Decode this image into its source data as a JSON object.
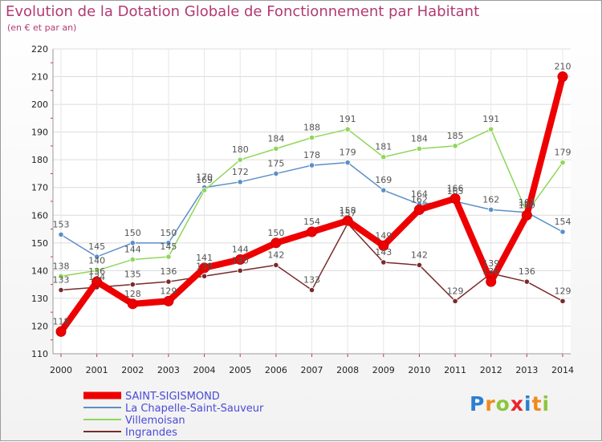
{
  "header": {
    "title": "Evolution de la Dotation Globale de Fonctionnement par Habitant",
    "subtitle": "(en € et par an)"
  },
  "logo": {
    "letters": [
      "P",
      "r",
      "o",
      "x",
      "i",
      "t",
      "i"
    ]
  },
  "chart_data": {
    "type": "line",
    "title": "Evolution de la Dotation Globale de Fonctionnement par Habitant",
    "subtitle": "(en € et par an)",
    "xlabel": "",
    "ylabel": "",
    "ylim": [
      110,
      220
    ],
    "yticks": [
      110,
      120,
      130,
      140,
      150,
      160,
      170,
      180,
      190,
      200,
      210,
      220
    ],
    "grid": true,
    "legend_position": "bottom-left",
    "x": [
      2000,
      2001,
      2002,
      2003,
      2004,
      2005,
      2006,
      2007,
      2008,
      2009,
      2010,
      2011,
      2012,
      2013,
      2014
    ],
    "series": [
      {
        "name": "La Chapelle-Saint-Sauveur",
        "color": "#5b8fc7",
        "values": [
          153,
          145,
          150,
          150,
          170,
          172,
          175,
          178,
          179,
          169,
          164,
          165,
          162,
          161,
          154
        ],
        "labels": [
          "153",
          "145",
          "150",
          "150",
          "170",
          "172",
          "175",
          "178",
          "179",
          "169",
          "164",
          "165",
          "162",
          "161",
          "154"
        ]
      },
      {
        "name": "Villemoisan",
        "color": "#8fd65a",
        "values": [
          138,
          140,
          144,
          145,
          169,
          180,
          184,
          188,
          191,
          181,
          184,
          185,
          191,
          161,
          179
        ],
        "labels": [
          "138",
          "140",
          "144",
          "145",
          "169",
          "180",
          "184",
          "188",
          "191",
          "181",
          "184",
          "185",
          "191",
          "161",
          "179"
        ]
      },
      {
        "name": "Ingrandes",
        "color": "#7a2a2a",
        "values": [
          133,
          134,
          135,
          136,
          138,
          140,
          142,
          133,
          157,
          143,
          142,
          129,
          139,
          136,
          129
        ],
        "labels": [
          "133",
          "134",
          "135",
          "136",
          "138",
          "140",
          "142",
          "133",
          "157",
          "143",
          "142",
          "129",
          "139",
          "136",
          "129"
        ]
      },
      {
        "name": "SAINT-SIGISMOND",
        "color": "#ee0000",
        "values": [
          118,
          136,
          128,
          129,
          141,
          144,
          150,
          154,
          158,
          149,
          162,
          166,
          136,
          160,
          210
        ],
        "labels": [
          "118",
          "136",
          "128",
          "129",
          "141",
          "144",
          "150",
          "154",
          "158",
          "149",
          "162",
          "166",
          "136",
          "160",
          "210"
        ]
      }
    ],
    "legend_order": [
      "SAINT-SIGISMOND",
      "La Chapelle-Saint-Sauveur",
      "Villemoisan",
      "Ingrandes"
    ]
  }
}
